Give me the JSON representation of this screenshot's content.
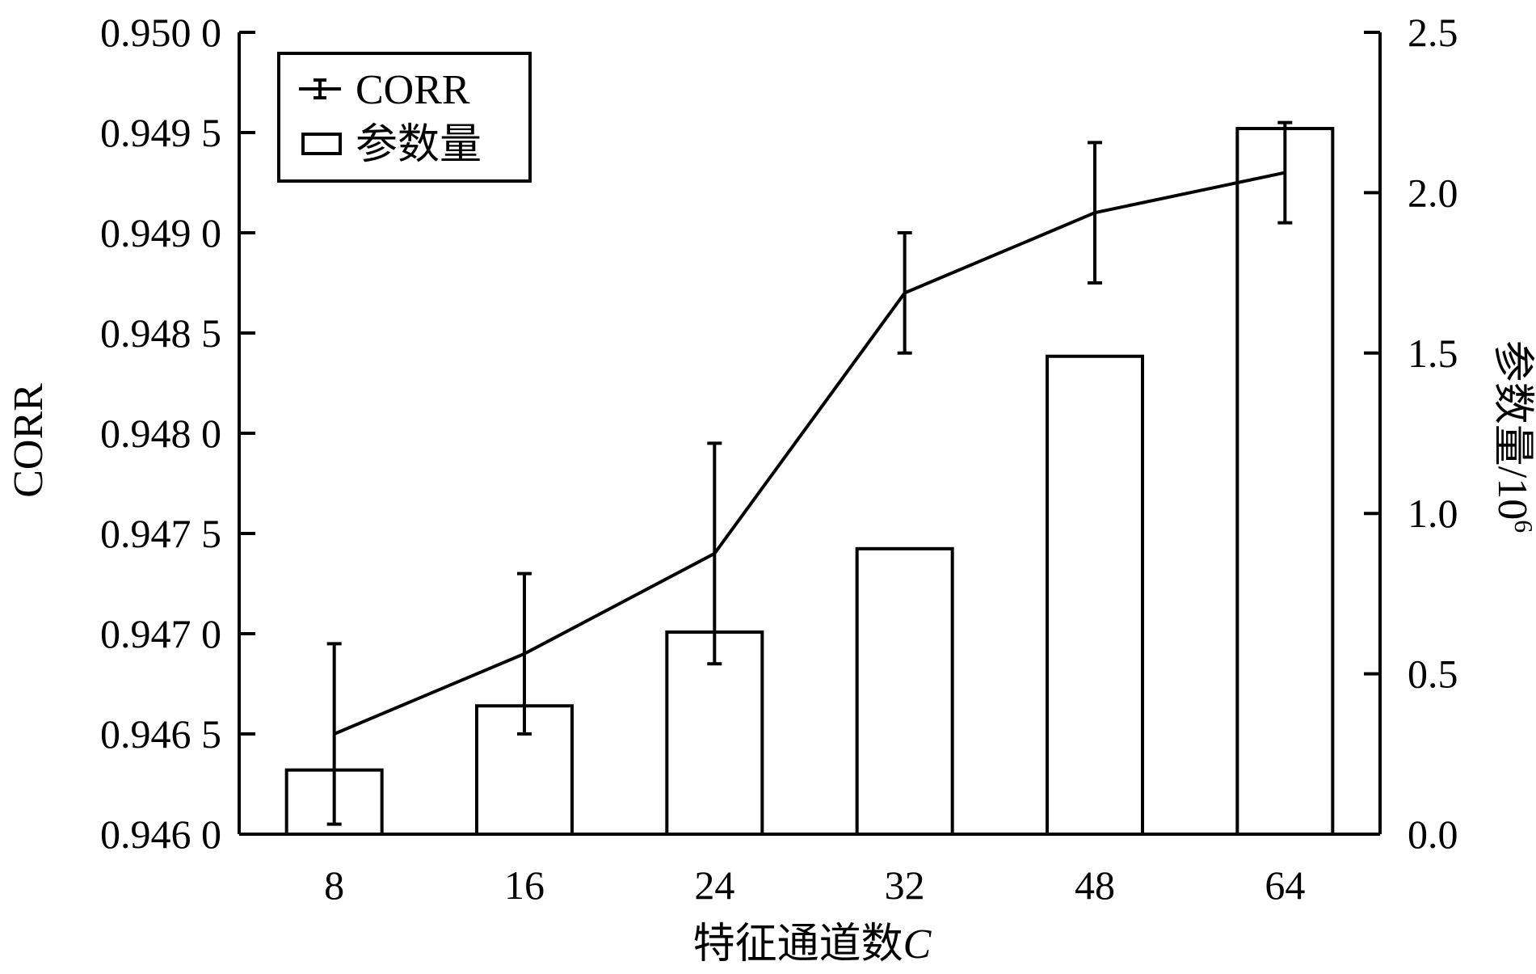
{
  "chart_data": {
    "type": "bar",
    "categories": [
      "8",
      "16",
      "24",
      "32",
      "48",
      "64"
    ],
    "xlabel": "特征通道数",
    "xlabel_var": "C",
    "ylabel_left": "CORR",
    "ylabel_right": "参数量/10",
    "ylabel_right_sup": "6",
    "y_left": {
      "lim": [
        0.946,
        0.95
      ],
      "ticks": [
        0.946,
        0.9465,
        0.947,
        0.9475,
        0.948,
        0.9485,
        0.949,
        0.9495,
        0.95
      ],
      "tick_labels": [
        "0.946 0",
        "0.946 5",
        "0.947 0",
        "0.947 5",
        "0.948 0",
        "0.948 5",
        "0.949 0",
        "0.949 5",
        "0.950 0"
      ]
    },
    "y_right": {
      "lim": [
        0,
        2.5
      ],
      "ticks": [
        0,
        0.5,
        1.0,
        1.5,
        2.0,
        2.5
      ],
      "tick_labels": [
        "0.0",
        "0.5",
        "1.0",
        "1.5",
        "2.0",
        "2.5"
      ]
    },
    "series": [
      {
        "name": "CORR",
        "kind": "line-errorbar",
        "axis": "left",
        "values": [
          0.9465,
          0.9469,
          0.9474,
          0.9487,
          0.9491,
          0.9493
        ],
        "err_low": [
          0.94605,
          0.9465,
          0.94685,
          0.9484,
          0.94875,
          0.94905
        ],
        "err_high": [
          0.94695,
          0.9473,
          0.94795,
          0.949,
          0.94945,
          0.94955
        ]
      },
      {
        "name": "参数量",
        "kind": "bar",
        "axis": "right",
        "values": [
          0.2,
          0.4,
          0.63,
          0.89,
          1.49,
          2.2
        ]
      }
    ],
    "legend": {
      "position": "top-left",
      "entries": [
        "CORR",
        "参数量"
      ]
    },
    "grid": false
  }
}
